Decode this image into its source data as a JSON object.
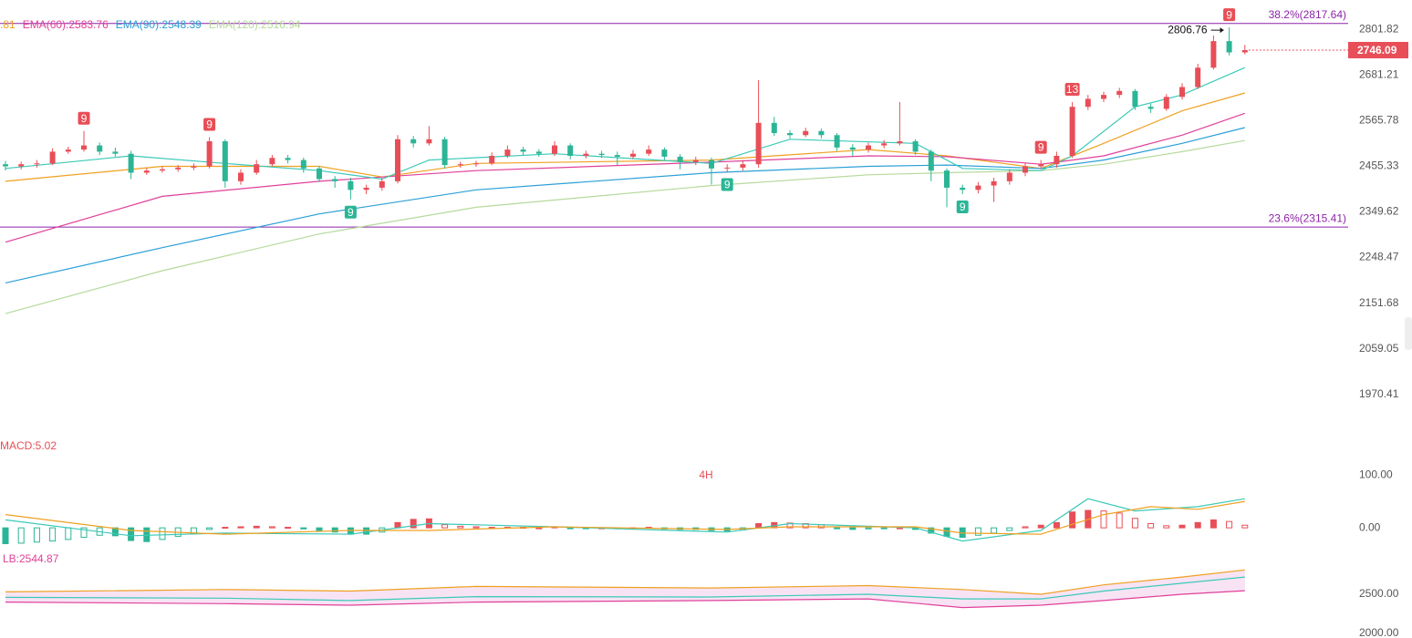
{
  "chart_data": [
    {
      "type": "candlestick",
      "log_scale": true,
      "grid": false,
      "up_color": "#e84e57",
      "down_color": "#2bb596",
      "ylim": [
        1907,
        2882
      ],
      "yticks": [
        2801.82,
        2681.21,
        2565.78,
        2455.33,
        2349.62,
        2248.47,
        2151.68,
        2059.05,
        1970.41
      ],
      "open": [
        2460,
        2455,
        2460,
        2462,
        2490,
        2495,
        2505,
        2490,
        2485,
        2440,
        2445,
        2448,
        2452,
        2455,
        2515,
        2420,
        2440,
        2460,
        2475,
        2470,
        2450,
        2425,
        2420,
        2400,
        2405,
        2420,
        2520,
        2510,
        2520,
        2458,
        2460,
        2462,
        2480,
        2495,
        2490,
        2485,
        2505,
        2480,
        2485,
        2482,
        2478,
        2485,
        2495,
        2478,
        2465,
        2470,
        2450,
        2452,
        2460,
        2560,
        2535,
        2530,
        2540,
        2530,
        2500,
        2495,
        2505,
        2510,
        2515,
        2490,
        2445,
        2405,
        2400,
        2410,
        2420,
        2440,
        2455,
        2460,
        2480,
        2600,
        2620,
        2630,
        2640,
        2600,
        2595,
        2625,
        2650,
        2700,
        2770,
        2740
      ],
      "high": [
        2468,
        2466,
        2470,
        2498,
        2502,
        2540,
        2512,
        2500,
        2492,
        2452,
        2455,
        2458,
        2462,
        2525,
        2520,
        2448,
        2470,
        2482,
        2482,
        2476,
        2456,
        2432,
        2428,
        2412,
        2428,
        2530,
        2528,
        2552,
        2526,
        2466,
        2468,
        2488,
        2505,
        2502,
        2496,
        2515,
        2510,
        2492,
        2492,
        2490,
        2494,
        2505,
        2500,
        2484,
        2478,
        2476,
        2460,
        2470,
        2668,
        2575,
        2542,
        2548,
        2546,
        2535,
        2508,
        2512,
        2518,
        2612,
        2520,
        2495,
        2450,
        2412,
        2418,
        2428,
        2448,
        2462,
        2470,
        2490,
        2612,
        2630,
        2638,
        2648,
        2645,
        2608,
        2632,
        2660,
        2710,
        2785,
        2806.76,
        2760
      ],
      "low": [
        2445,
        2448,
        2452,
        2458,
        2485,
        2490,
        2482,
        2478,
        2425,
        2435,
        2440,
        2442,
        2446,
        2450,
        2405,
        2412,
        2435,
        2455,
        2462,
        2440,
        2418,
        2405,
        2378,
        2390,
        2398,
        2415,
        2500,
        2505,
        2450,
        2452,
        2454,
        2458,
        2475,
        2482,
        2478,
        2480,
        2472,
        2474,
        2475,
        2458,
        2472,
        2480,
        2470,
        2448,
        2458,
        2412,
        2442,
        2445,
        2452,
        2528,
        2522,
        2525,
        2522,
        2492,
        2480,
        2488,
        2498,
        2505,
        2482,
        2420,
        2360,
        2390,
        2392,
        2372,
        2412,
        2432,
        2448,
        2452,
        2475,
        2592,
        2612,
        2622,
        2592,
        2585,
        2590,
        2618,
        2645,
        2695,
        2732,
        2735
      ],
      "close": [
        2455,
        2460,
        2462,
        2490,
        2495,
        2505,
        2490,
        2485,
        2440,
        2445,
        2448,
        2452,
        2455,
        2515,
        2420,
        2440,
        2460,
        2475,
        2470,
        2450,
        2425,
        2420,
        2400,
        2405,
        2420,
        2520,
        2510,
        2520,
        2458,
        2460,
        2462,
        2480,
        2495,
        2490,
        2485,
        2505,
        2480,
        2485,
        2482,
        2478,
        2485,
        2495,
        2478,
        2465,
        2470,
        2450,
        2452,
        2460,
        2560,
        2535,
        2530,
        2540,
        2530,
        2500,
        2495,
        2505,
        2510,
        2515,
        2490,
        2445,
        2405,
        2400,
        2410,
        2420,
        2440,
        2455,
        2460,
        2480,
        2600,
        2620,
        2630,
        2640,
        2600,
        2595,
        2625,
        2650,
        2700,
        2770,
        2740,
        2746.09
      ],
      "series": [
        {
          "name": ".81",
          "color": "#f0a020",
          "x": [
            0,
            10,
            20,
            24,
            30,
            45,
            55,
            60,
            66,
            70,
            75,
            79
          ],
          "values": [
            2420,
            2455,
            2455,
            2430,
            2462,
            2470,
            2495,
            2480,
            2450,
            2510,
            2590,
            2635
          ]
        },
        {
          "name": "EMA(60):2583.76",
          "color": "#e0409a",
          "x": [
            0,
            10,
            20,
            30,
            45,
            55,
            60,
            66,
            70,
            75,
            79
          ],
          "values": [
            2282,
            2385,
            2420,
            2445,
            2465,
            2480,
            2478,
            2460,
            2480,
            2530,
            2583.76
          ]
        },
        {
          "name": "EMA(90):2548.39",
          "color": "#2a9fd6",
          "x": [
            0,
            10,
            20,
            30,
            45,
            55,
            60,
            66,
            70,
            75,
            79
          ],
          "values": [
            2194,
            2270,
            2345,
            2400,
            2440,
            2455,
            2458,
            2450,
            2470,
            2510,
            2548.39
          ]
        },
        {
          "name": "EMA(120):2516.94",
          "color": "#b5d99c",
          "x": [
            0,
            10,
            20,
            30,
            45,
            55,
            60,
            66,
            70,
            75,
            79
          ],
          "values": [
            2130,
            2220,
            2300,
            2360,
            2410,
            2435,
            2440,
            2445,
            2460,
            2490,
            2516.94
          ]
        },
        {
          "color": "#3cc9b8",
          "x": [
            0,
            8,
            14,
            20,
            24,
            27,
            35,
            45,
            50,
            58,
            61,
            66,
            68,
            72,
            75,
            79
          ],
          "values": [
            2450,
            2480,
            2462,
            2445,
            2425,
            2470,
            2485,
            2462,
            2520,
            2510,
            2450,
            2445,
            2480,
            2600,
            2630,
            2700
          ]
        }
      ],
      "levels": [
        {
          "label": "38.2%(2817.64)",
          "value": 2817.64
        },
        {
          "label": "23.6%(2315.41)",
          "value": 2315.41
        }
      ],
      "level_color": "#8e24aa",
      "markers": [
        {
          "x": 5,
          "label": "9",
          "position": "above",
          "color": "#e84e57"
        },
        {
          "x": 13,
          "label": "9",
          "position": "above",
          "color": "#e84e57"
        },
        {
          "x": 66,
          "label": "9",
          "position": "above",
          "color": "#e84e57"
        },
        {
          "x": 68,
          "label": "13",
          "position": "above",
          "color": "#e84e57"
        },
        {
          "x": 78,
          "label": "9",
          "position": "above",
          "color": "#e84e57"
        },
        {
          "x": 22,
          "label": "9",
          "position": "below",
          "color": "#2bb596"
        },
        {
          "x": 46,
          "label": "9",
          "position": "below",
          "color": "#2bb596"
        },
        {
          "x": 61,
          "label": "9",
          "position": "below",
          "color": "#2bb596"
        }
      ]
    },
    {
      "type": "macd",
      "title": "4H",
      "label": "MACD:5.02",
      "ylim": [
        -36,
        171
      ],
      "yticks": [
        {
          "value": 100,
          "label": "100.00"
        },
        {
          "value": 0,
          "label": "0.00"
        }
      ],
      "up_color": "#e84e57",
      "down_color": "#2bb596",
      "values": [
        -30,
        -29,
        -27,
        -25,
        -22,
        -18,
        -14,
        -15,
        -24,
        -26,
        -22,
        -16,
        -10,
        -3,
        1,
        2,
        3,
        2,
        1,
        -2,
        -5,
        -8,
        -12,
        -12,
        -8,
        10,
        16,
        17,
        6,
        3,
        2,
        1,
        1,
        1,
        0,
        2,
        -1,
        -1,
        0,
        -1,
        0,
        1,
        -2,
        -3,
        -3,
        -5,
        -6,
        -4,
        8,
        10,
        9,
        8,
        6,
        -1,
        -3,
        -2,
        -1,
        0,
        -3,
        -10,
        -16,
        -18,
        -14,
        -10,
        -5,
        2,
        5,
        10,
        30,
        33,
        32,
        28,
        18,
        8,
        4,
        5,
        10,
        15,
        12,
        5
      ],
      "series": [
        {
          "color": "#3cc9b8",
          "x": [
            0,
            8,
            14,
            22,
            27,
            35,
            46,
            50,
            58,
            61,
            66,
            69,
            72,
            76,
            79
          ],
          "values": [
            15,
            -15,
            -10,
            -12,
            8,
            2,
            -8,
            8,
            0,
            -25,
            -5,
            55,
            32,
            40,
            55
          ]
        },
        {
          "color": "#f0a020",
          "x": [
            0,
            8,
            14,
            22,
            27,
            35,
            46,
            50,
            58,
            61,
            66,
            70,
            73,
            76,
            79
          ],
          "values": [
            25,
            -5,
            -12,
            -5,
            -5,
            2,
            -3,
            2,
            2,
            -10,
            -12,
            25,
            40,
            35,
            50
          ]
        }
      ]
    },
    {
      "type": "bands",
      "label": "LB:2544.87",
      "ylim": [
        1942,
        3046
      ],
      "yticks": [
        {
          "value": 2500,
          "label": "2500.00"
        },
        {
          "value": 2000,
          "label": "2000.00"
        }
      ],
      "fill": "#f3d7f0",
      "series": [
        {
          "color": "#f0a020",
          "x": [
            0,
            14,
            22,
            30,
            45,
            55,
            61,
            66,
            70,
            75,
            79
          ],
          "values": [
            2530,
            2560,
            2540,
            2600,
            2580,
            2610,
            2560,
            2500,
            2620,
            2720,
            2810
          ]
        },
        {
          "color": "#3cc9b8",
          "x": [
            0,
            14,
            22,
            30,
            45,
            55,
            61,
            66,
            70,
            75,
            79
          ],
          "values": [
            2460,
            2450,
            2420,
            2470,
            2465,
            2500,
            2440,
            2440,
            2540,
            2640,
            2720
          ]
        },
        {
          "color": "#e0409a",
          "x": [
            0,
            14,
            22,
            30,
            45,
            55,
            61,
            66,
            70,
            75,
            79
          ],
          "values": [
            2400,
            2380,
            2360,
            2400,
            2420,
            2440,
            2330,
            2360,
            2420,
            2500,
            2544.87
          ]
        }
      ]
    }
  ]
}
